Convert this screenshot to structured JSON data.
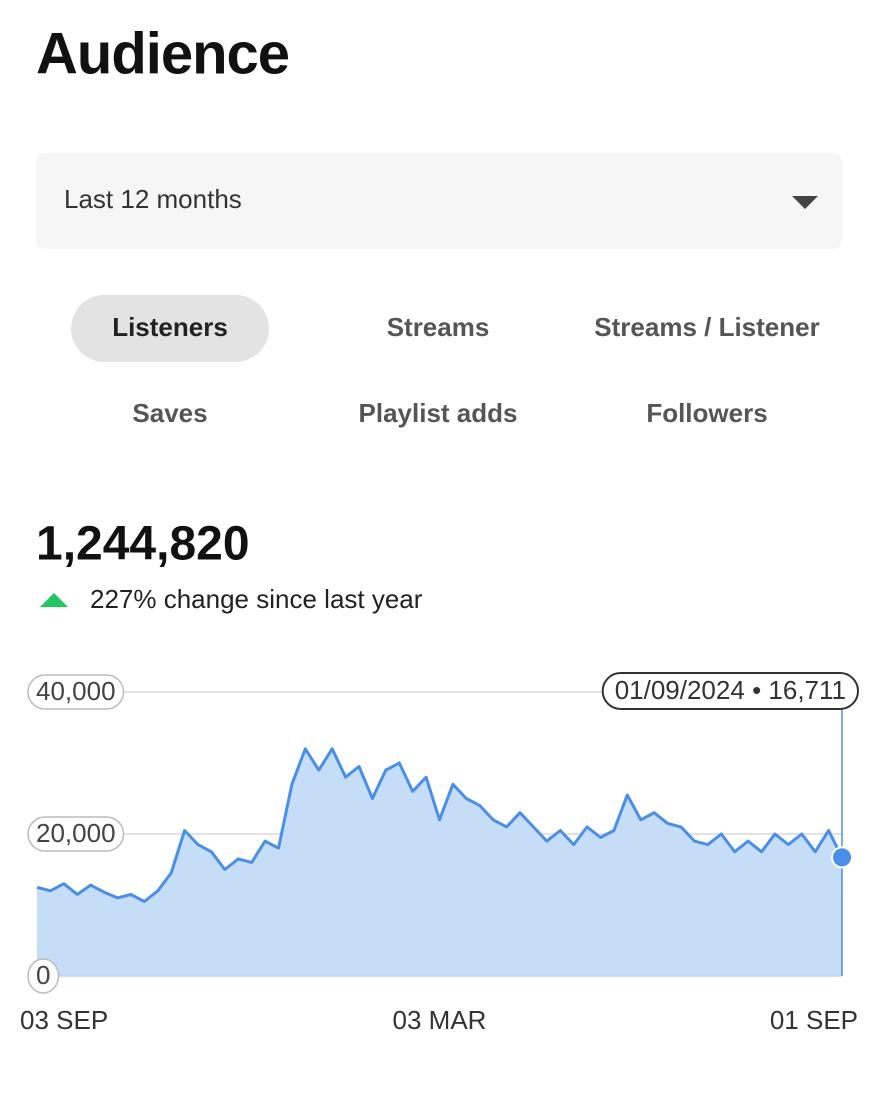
{
  "header": {
    "title": "Audience"
  },
  "filter": {
    "label": "Last 12 months"
  },
  "tabs": {
    "items": [
      "Listeners",
      "Streams",
      "Streams / Listener",
      "Saves",
      "Playlist adds",
      "Followers"
    ],
    "selected": 0
  },
  "summary": {
    "total": "1,244,820",
    "change": "227% change since last year"
  },
  "chart_data": {
    "type": "area",
    "categories": [
      "03 SEP",
      null,
      null,
      null,
      null,
      null,
      null,
      null,
      null,
      null,
      null,
      null,
      null,
      null,
      null,
      null,
      null,
      null,
      null,
      null,
      null,
      null,
      null,
      null,
      null,
      null,
      null,
      null,
      null,
      null,
      "03 MAR",
      null,
      null,
      null,
      null,
      null,
      null,
      null,
      null,
      null,
      null,
      null,
      null,
      null,
      null,
      null,
      null,
      null,
      null,
      null,
      null,
      null,
      null,
      null,
      null,
      null,
      null,
      null,
      null,
      null,
      "01 SEP"
    ],
    "values": [
      12500,
      12000,
      13000,
      11500,
      12800,
      11800,
      11000,
      11500,
      10500,
      12000,
      14500,
      20500,
      18500,
      17500,
      15000,
      16500,
      16000,
      19000,
      18000,
      27000,
      32000,
      29000,
      32000,
      28000,
      29500,
      25000,
      29000,
      30000,
      26000,
      28000,
      22000,
      27000,
      25000,
      24000,
      22000,
      21000,
      23000,
      21000,
      19000,
      20500,
      18500,
      21000,
      19500,
      20500,
      25500,
      22000,
      23000,
      21500,
      21000,
      19000,
      18500,
      20000,
      17500,
      19000,
      17500,
      20000,
      18500,
      20000,
      17500,
      20500,
      16711
    ],
    "color": "#4a8fe7",
    "fill": "#c6ddf8",
    "ylim": [
      0,
      40000
    ],
    "yticks": [
      0,
      {
        "value": 20000,
        "label": "20,000"
      },
      {
        "value": 40000,
        "label": "40,000"
      }
    ],
    "grid": true,
    "tooltip": {
      "date": "01/09/2024",
      "separator": "•",
      "value_label": "16,711"
    }
  }
}
